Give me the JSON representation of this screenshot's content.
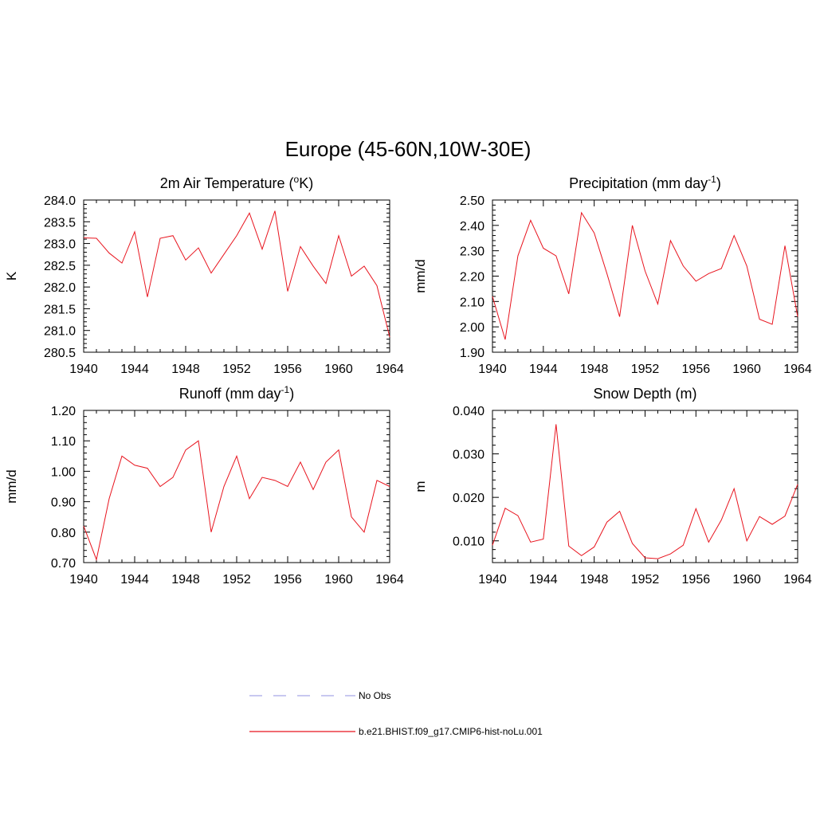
{
  "figure": {
    "title": "Europe (45-60N,10W-30E)"
  },
  "colors": {
    "model": "#e8141e",
    "obs": "#a8a8e8"
  },
  "legend": {
    "entries": [
      {
        "label": "No Obs",
        "style": "dashed",
        "color": "#a8a8e8"
      },
      {
        "label": "b.e21.BHIST.f09_g17.CMIP6-hist-noLu.001",
        "style": "solid",
        "color": "#e8141e"
      }
    ]
  },
  "chart_data": [
    {
      "type": "line",
      "title": "2m Air Temperature (",
      "title_sup": "o",
      "title_end": "K)",
      "ylabel": "K",
      "xlim": [
        1940,
        1964
      ],
      "ylim": [
        280.5,
        284.0
      ],
      "x_ticks": [
        1940,
        1944,
        1948,
        1952,
        1956,
        1960,
        1964
      ],
      "y_ticks": [
        "280.5",
        "281.0",
        "281.5",
        "282.0",
        "282.5",
        "283.0",
        "283.5",
        "284.0"
      ],
      "series": [
        {
          "x": [
            1940,
            1941,
            1942,
            1943,
            1944,
            1945,
            1946,
            1947,
            1948,
            1949,
            1950,
            1951,
            1952,
            1953,
            1954,
            1955,
            1956,
            1957,
            1958,
            1959,
            1960,
            1961,
            1962,
            1963,
            1964
          ],
          "values": [
            283.13,
            283.12,
            282.78,
            282.55,
            283.27,
            281.77,
            283.12,
            283.18,
            282.62,
            282.9,
            282.32,
            282.75,
            283.18,
            283.7,
            282.87,
            283.75,
            281.9,
            282.93,
            282.48,
            282.08,
            283.18,
            282.25,
            282.48,
            282.03,
            280.85
          ]
        }
      ]
    },
    {
      "type": "line",
      "title": "Precipitation (mm day",
      "title_sup": "-1",
      "title_end": ")",
      "ylabel": "mm/d",
      "xlim": [
        1940,
        1964
      ],
      "ylim": [
        1.9,
        2.5
      ],
      "x_ticks": [
        1940,
        1944,
        1948,
        1952,
        1956,
        1960,
        1964
      ],
      "y_ticks": [
        "1.90",
        "2.00",
        "2.10",
        "2.20",
        "2.30",
        "2.40",
        "2.50"
      ],
      "series": [
        {
          "x": [
            1940,
            1941,
            1942,
            1943,
            1944,
            1945,
            1946,
            1947,
            1948,
            1949,
            1950,
            1951,
            1952,
            1953,
            1954,
            1955,
            1956,
            1957,
            1958,
            1959,
            1960,
            1961,
            1962,
            1963,
            1964
          ],
          "values": [
            2.12,
            1.95,
            2.28,
            2.42,
            2.31,
            2.28,
            2.13,
            2.45,
            2.37,
            2.21,
            2.04,
            2.4,
            2.22,
            2.09,
            2.34,
            2.24,
            2.18,
            2.21,
            2.23,
            2.36,
            2.24,
            2.03,
            2.01,
            2.32,
            2.04
          ]
        }
      ]
    },
    {
      "type": "line",
      "title": "Runoff (mm day",
      "title_sup": "-1",
      "title_end": ")",
      "ylabel": "mm/d",
      "xlim": [
        1940,
        1964
      ],
      "ylim": [
        0.7,
        1.2
      ],
      "x_ticks": [
        1940,
        1944,
        1948,
        1952,
        1956,
        1960,
        1964
      ],
      "y_ticks": [
        "0.70",
        "0.80",
        "0.90",
        "1.00",
        "1.10",
        "1.20"
      ],
      "series": [
        {
          "x": [
            1940,
            1941,
            1942,
            1943,
            1944,
            1945,
            1946,
            1947,
            1948,
            1949,
            1950,
            1951,
            1952,
            1953,
            1954,
            1955,
            1956,
            1957,
            1958,
            1959,
            1960,
            1961,
            1962,
            1963,
            1964
          ],
          "values": [
            0.82,
            0.71,
            0.91,
            1.05,
            1.02,
            1.01,
            0.95,
            0.98,
            1.07,
            1.1,
            0.8,
            0.95,
            1.05,
            0.91,
            0.98,
            0.97,
            0.95,
            1.03,
            0.94,
            1.03,
            1.07,
            0.85,
            0.8,
            0.97,
            0.95
          ]
        }
      ]
    },
    {
      "type": "line",
      "title": "Snow Depth (m)",
      "title_sup": "",
      "title_end": "",
      "ylabel": "m",
      "xlim": [
        1940,
        1964
      ],
      "ylim": [
        0.005,
        0.04
      ],
      "x_ticks": [
        1940,
        1944,
        1948,
        1952,
        1956,
        1960,
        1964
      ],
      "y_ticks": [
        "0.010",
        "0.020",
        "0.030",
        "0.040"
      ],
      "series": [
        {
          "x": [
            1940,
            1941,
            1942,
            1943,
            1944,
            1945,
            1946,
            1947,
            1948,
            1949,
            1950,
            1951,
            1952,
            1953,
            1954,
            1955,
            1956,
            1957,
            1958,
            1959,
            1960,
            1961,
            1962,
            1963,
            1964
          ],
          "values": [
            0.009,
            0.0175,
            0.0158,
            0.0097,
            0.0104,
            0.0368,
            0.0088,
            0.0066,
            0.0086,
            0.0143,
            0.0168,
            0.0094,
            0.0061,
            0.0059,
            0.007,
            0.009,
            0.0174,
            0.0097,
            0.0148,
            0.022,
            0.01,
            0.0156,
            0.0138,
            0.0157,
            0.023
          ]
        }
      ]
    }
  ]
}
